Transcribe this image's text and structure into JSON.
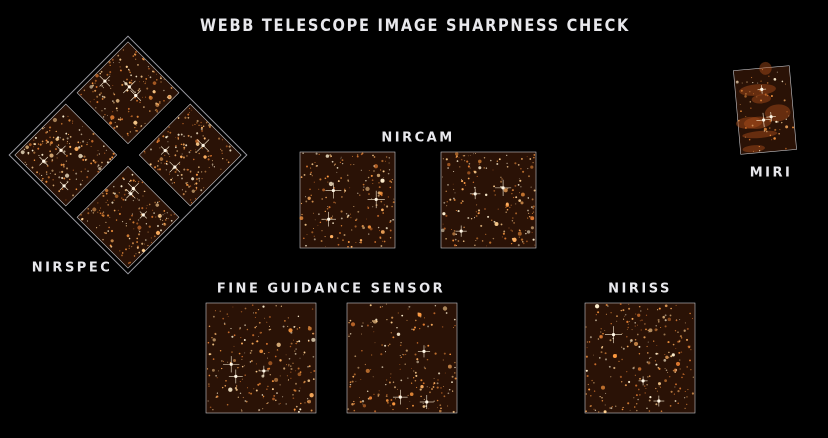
{
  "title": "WEBB TELESCOPE IMAGE SHARPNESS CHECK",
  "instruments": [
    {
      "label": "NIRSPEC"
    },
    {
      "label": "NIRCAM"
    },
    {
      "label": "MIRI"
    },
    {
      "label": "FINE GUIDANCE SENSOR"
    },
    {
      "label": "NIRISS"
    }
  ]
}
